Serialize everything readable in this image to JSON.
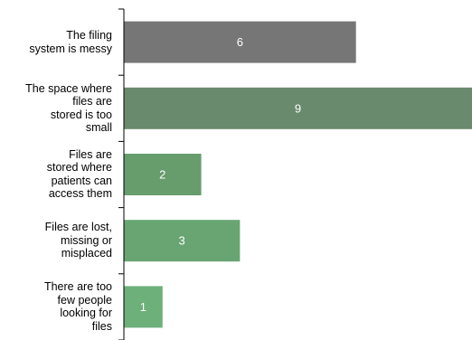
{
  "chart_data": {
    "type": "bar",
    "orientation": "horizontal",
    "categories": [
      "The filing\nsystem is messy",
      "The space where\nfiles are\nstored is too\nsmall",
      "Files are\nstored where\npatients can\naccess them",
      "Files are lost,\nmissing or\nmisplaced",
      "There are too\nfew people\nlooking for\nfiles"
    ],
    "values": [
      6,
      9,
      2,
      3,
      1
    ],
    "colors": [
      "#767676",
      "#6a8a6d",
      "#679c6c",
      "#68a572",
      "#6db07a"
    ],
    "data_labels": [
      "6",
      "9",
      "2",
      "3",
      "1"
    ],
    "xlim": [
      0,
      9
    ],
    "grid": false,
    "legend": "none",
    "title": "",
    "xlabel": "",
    "ylabel": ""
  }
}
